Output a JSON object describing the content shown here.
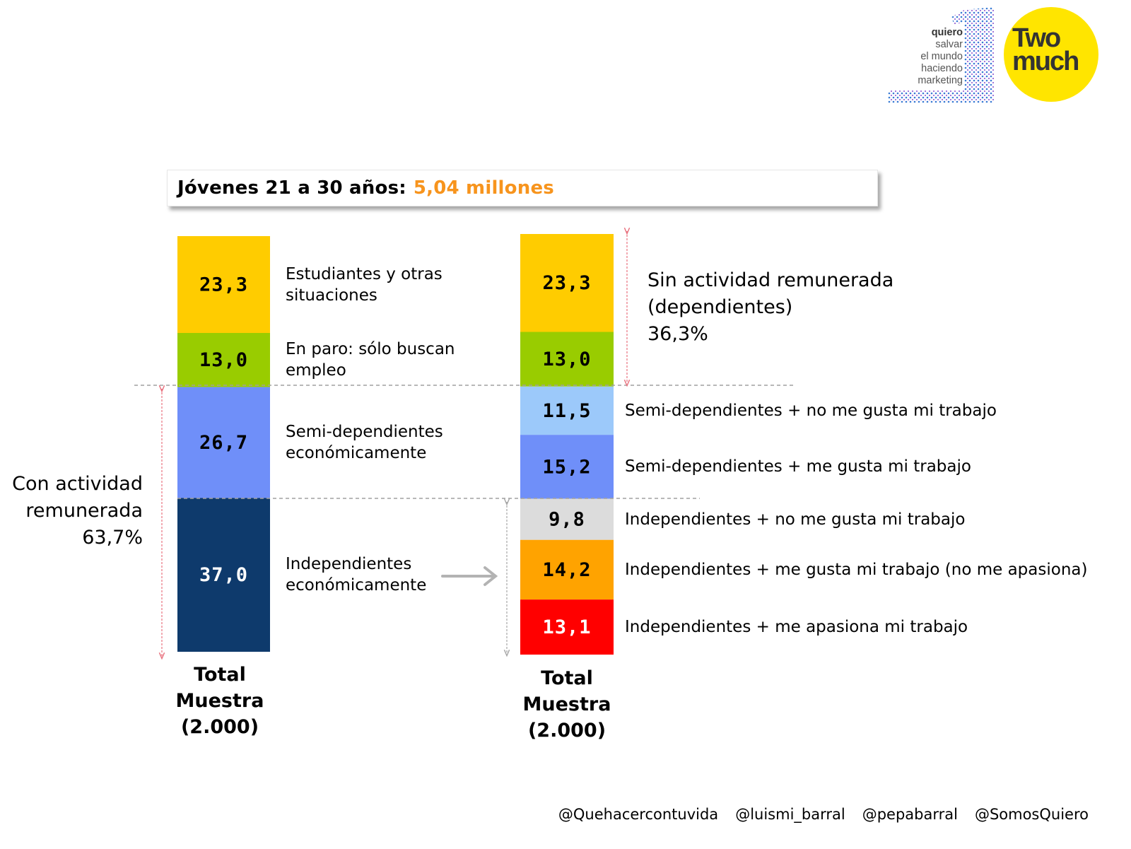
{
  "title": {
    "prefix": "Jóvenes 21 a 30 años:",
    "highlight": "5,04 millones"
  },
  "colors": {
    "yellow": "#ffcc00",
    "green": "#99cc00",
    "periwinkle": "#6f8ff9",
    "navy": "#0e3a6c",
    "light_blue": "#9cc9fa",
    "grey": "#dcdcdc",
    "orange": "#ffa300",
    "red": "#ff0000",
    "accent_orange": "#f7941d"
  },
  "chart_data": [
    {
      "type": "stacked-bar",
      "name": "left",
      "category": "Total Muestra (2.000)",
      "total_lines": [
        "Total",
        "Muestra",
        "(2.000)"
      ],
      "segments": [
        {
          "value": 23.3,
          "label": "23,3",
          "color": "#ffcc00",
          "text_color": "#000000",
          "description": [
            "Estudiantes y otras",
            "situaciones"
          ]
        },
        {
          "value": 13.0,
          "label": "13,0",
          "color": "#99cc00",
          "text_color": "#000000",
          "description": [
            "En paro: sólo buscan",
            "empleo"
          ]
        },
        {
          "value": 26.7,
          "label": "26,7",
          "color": "#6f8ff9",
          "text_color": "#000000",
          "description": [
            "Semi-dependientes",
            "económicamente"
          ]
        },
        {
          "value": 37.0,
          "label": "37,0",
          "color": "#0e3a6c",
          "text_color": "#ffffff",
          "description": [
            "Independientes",
            "económicamente"
          ]
        }
      ]
    },
    {
      "type": "stacked-bar",
      "name": "right",
      "category": "Total Muestra (2.000)",
      "total_lines": [
        "Total",
        "Muestra",
        "(2.000)"
      ],
      "segments": [
        {
          "value": 23.3,
          "label": "23,3",
          "color": "#ffcc00",
          "text_color": "#000000",
          "description": []
        },
        {
          "value": 13.0,
          "label": "13,0",
          "color": "#99cc00",
          "text_color": "#000000",
          "description": []
        },
        {
          "value": 11.5,
          "label": "11,5",
          "color": "#9cc9fa",
          "text_color": "#000000",
          "description": [
            "Semi-dependientes + no me gusta mi trabajo"
          ]
        },
        {
          "value": 15.2,
          "label": "15,2",
          "color": "#6f8ff9",
          "text_color": "#000000",
          "description": [
            "Semi-dependientes + me gusta mi trabajo"
          ]
        },
        {
          "value": 9.8,
          "label": "9,8",
          "color": "#dcdcdc",
          "text_color": "#000000",
          "description": [
            "Independientes + no me gusta mi trabajo"
          ]
        },
        {
          "value": 14.2,
          "label": "14,2",
          "color": "#ffa300",
          "text_color": "#000000",
          "description": [
            "Independientes + me gusta mi trabajo (no me apasiona)"
          ]
        },
        {
          "value": 13.1,
          "label": "13,1",
          "color": "#ff0000",
          "text_color": "#ffffff",
          "description": [
            "Independientes + me apasiona mi trabajo"
          ]
        }
      ]
    }
  ],
  "annotations": {
    "sin_actividad": [
      "Sin actividad remunerada",
      "(dependientes)",
      "36,3%"
    ],
    "con_actividad": [
      "Con actividad",
      "remunerada",
      "63,7%"
    ]
  },
  "logos": {
    "quiero": [
      "quiero",
      "salvar",
      "el mundo",
      "haciendo",
      "marketing"
    ],
    "twomuch": [
      "Two",
      "much"
    ]
  },
  "footer": [
    "@Quehacercontuvida",
    "@luismi_barral",
    "@pepabarral",
    "@SomosQuiero"
  ]
}
